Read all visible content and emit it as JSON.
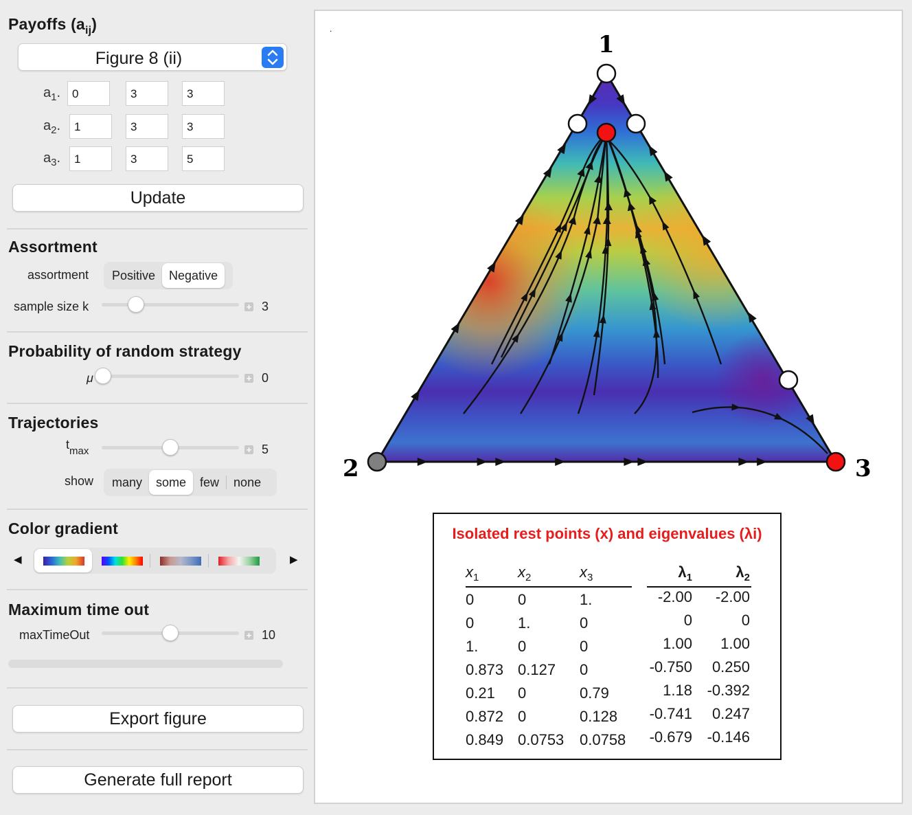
{
  "payoffs": {
    "title": "Payoffs (a",
    "title_sub": "ij",
    "title_close": ")",
    "preset": "Figure 8 (ii)",
    "rows": [
      {
        "label": "a",
        "sub": "1",
        "suffix": ".",
        "values": [
          "0",
          "3",
          "3"
        ]
      },
      {
        "label": "a",
        "sub": "2",
        "suffix": ".",
        "values": [
          "1",
          "3",
          "3"
        ]
      },
      {
        "label": "a",
        "sub": "3",
        "suffix": ".",
        "values": [
          "1",
          "3",
          "5"
        ]
      }
    ],
    "update_label": "Update"
  },
  "assortment": {
    "title": "Assortment",
    "label": "assortment",
    "options": [
      "Positive",
      "Negative"
    ],
    "selected": "Negative",
    "sample_size_label": "sample size",
    "sample_size_var": "k",
    "sample_size_value": "3",
    "sample_size_fraction": 0.25
  },
  "random_strategy": {
    "title": "Probability of random strategy",
    "label": "μ",
    "value": "0",
    "fraction": 0.0
  },
  "trajectories": {
    "title": "Trajectories",
    "tmax_label": "t",
    "tmax_sub": "max",
    "tmax_value": "5",
    "tmax_fraction": 0.5,
    "show_label": "show",
    "show_options": [
      "many",
      "some",
      "few",
      "none"
    ],
    "show_selected": "some"
  },
  "color_gradient": {
    "title": "Color gradient",
    "options": [
      "gradient-rainbow",
      "gradient-spectrum",
      "gradient-brown-blue",
      "gradient-red-green"
    ],
    "selected_index": 0
  },
  "timeout": {
    "title": "Maximum time out",
    "label": "maxTimeOut",
    "value": "10",
    "fraction": 0.5
  },
  "buttons": {
    "export": "Export figure",
    "report": "Generate full report"
  },
  "simplex": {
    "vertex_labels": [
      "1",
      "2",
      "3"
    ],
    "dot": "."
  },
  "results": {
    "title": "Isolated rest points (x) and eigenvalues (λi)",
    "headers": [
      {
        "base": "x",
        "sub": "1"
      },
      {
        "base": "x",
        "sub": "2"
      },
      {
        "base": "x",
        "sub": "3"
      },
      {
        "base": "λ",
        "sub": "1"
      },
      {
        "base": "λ",
        "sub": "2"
      }
    ],
    "rows": [
      [
        "0",
        "0",
        "1.",
        "-2.00",
        "-2.00"
      ],
      [
        "0",
        "1.",
        "0",
        "0",
        "0"
      ],
      [
        "1.",
        "0",
        "0",
        "1.00",
        "1.00"
      ],
      [
        "0.873",
        "0.127",
        "0",
        "-0.750",
        "0.250"
      ],
      [
        "0.21",
        "0",
        "0.79",
        "1.18",
        "-0.392"
      ],
      [
        "0.872",
        "0",
        "0.128",
        "-0.741",
        "0.247"
      ],
      [
        "0.849",
        "0.0753",
        "0.0758",
        "-0.679",
        "-0.146"
      ]
    ]
  }
}
